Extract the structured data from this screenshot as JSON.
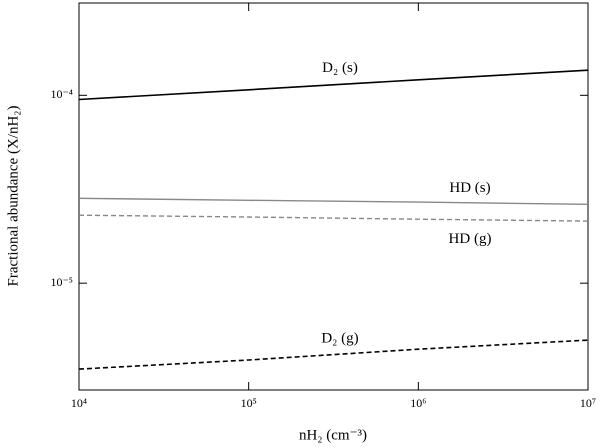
{
  "chart_data": {
    "type": "line",
    "xlabel": "nH₂ (cm⁻³)",
    "ylabel": "Fractional abundance (X/nH₂)",
    "xscale": "log",
    "yscale": "log",
    "x": [
      10000,
      100000,
      1000000,
      10000000
    ],
    "xlim": [
      10000,
      10000000
    ],
    "xticks": [
      {
        "value": 10000,
        "label": "10⁴"
      },
      {
        "value": 100000,
        "label": "10⁵"
      },
      {
        "value": 1000000,
        "label": "10⁶"
      },
      {
        "value": 10000000,
        "label": "10⁷"
      }
    ],
    "ylim": [
      2.7e-06,
      0.00031
    ],
    "yticks": [
      {
        "value": 1e-05,
        "label": "10⁻⁵"
      },
      {
        "value": 0.0001,
        "label": "10⁻⁴"
      }
    ],
    "series": [
      {
        "name": "D₂ (s)",
        "color": "#000000",
        "style": "solid",
        "values": [
          9.5e-05,
          0.000107,
          0.000121,
          0.000136
        ]
      },
      {
        "name": "HD (s)",
        "color": "#888888",
        "style": "solid",
        "values": [
          2.83e-05,
          2.76e-05,
          2.7e-05,
          2.63e-05
        ]
      },
      {
        "name": "HD (g)",
        "color": "#888888",
        "style": "dashed",
        "values": [
          2.3e-05,
          2.25e-05,
          2.19e-05,
          2.14e-05
        ]
      },
      {
        "name": "D₂ (g)",
        "color": "#000000",
        "style": "dashed",
        "values": [
          3.49e-06,
          3.9e-06,
          4.45e-06,
          4.98e-06
        ]
      }
    ]
  }
}
